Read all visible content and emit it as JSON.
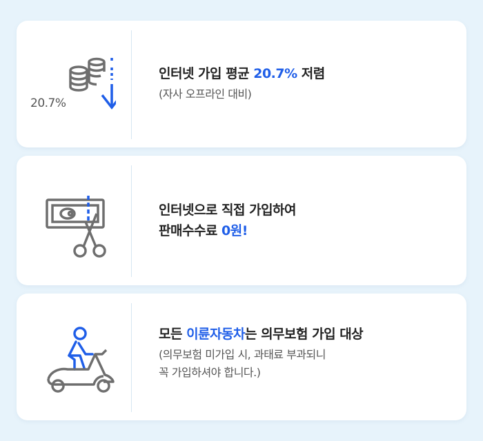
{
  "colors": {
    "accent": "#1f5ee8",
    "icon_gray": "#6e6e6e",
    "background": "#e7f3fb",
    "card": "#ffffff"
  },
  "card1": {
    "icon": "coins-down-arrow-icon",
    "icon_label": "20.7%",
    "title_before": "인터넷 가입 평균 ",
    "title_highlight": "20.7%",
    "title_after": " 저렴",
    "subtitle": "(자사 오프라인 대비)"
  },
  "card2": {
    "icon": "bill-scissors-icon",
    "title_line1": "인터넷으로 직접 가입하여",
    "title_line2_before": "판매수수료 ",
    "title_line2_highlight": "0원!"
  },
  "card3": {
    "icon": "scooter-rider-icon",
    "title_before": "모든 ",
    "title_highlight": "이륜자동차",
    "title_after": "는 의무보험 가입 대상",
    "subtitle_line1": "(의무보험 미가입 시, 과태료 부과되니",
    "subtitle_line2": "꼭 가입하셔야 합니다.)"
  }
}
